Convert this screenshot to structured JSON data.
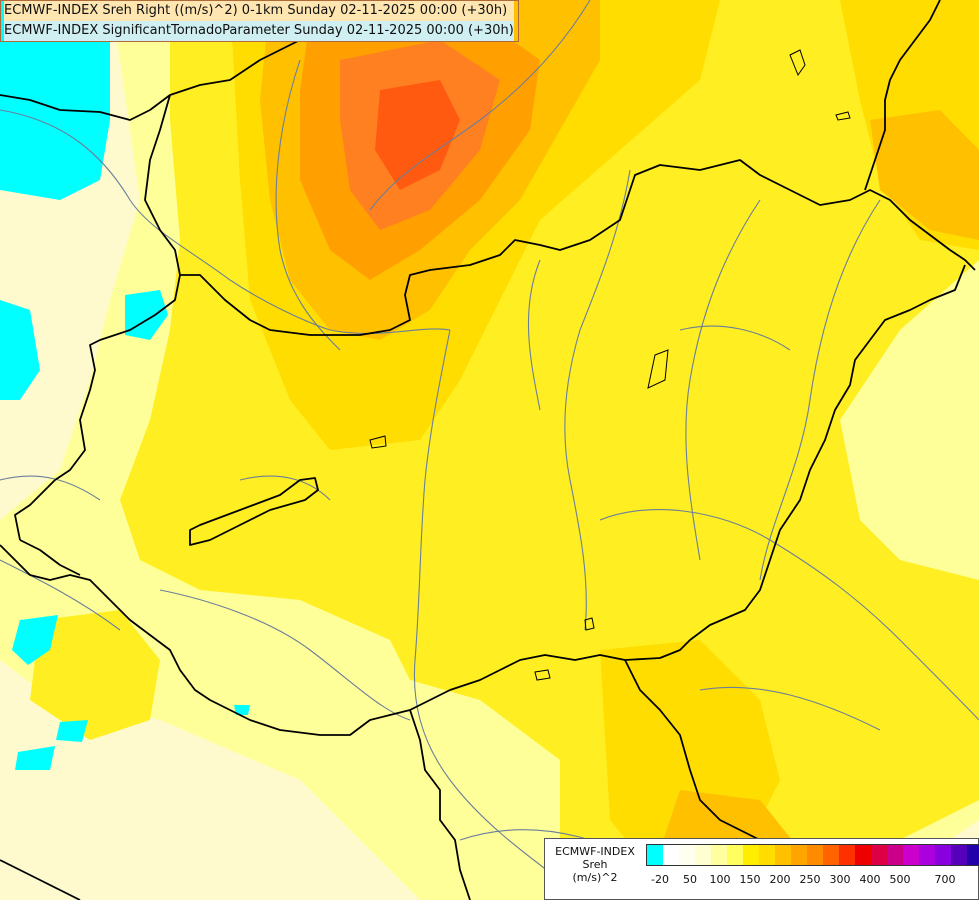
{
  "header": {
    "line1": "ECMWF-INDEX Sreh Right ((m/s)^2) 0-1km Sunday 02-11-2025 00:00 (+30h)",
    "line2": "ECMWF-INDEX SignificantTornadoParameter Sunday 02-11-2025 00:00 (+30h)"
  },
  "legend": {
    "title_line1": "ECMWF-INDEX",
    "title_line2": "Sreh",
    "title_line3": "(m/s)^2",
    "colors": [
      "#00ffff",
      "#ffffff",
      "#fffff0",
      "#ffffd0",
      "#ffffa0",
      "#ffff60",
      "#ffee00",
      "#ffdd00",
      "#ffc000",
      "#ffa500",
      "#ff8c00",
      "#ff6400",
      "#ff3000",
      "#ee0000",
      "#dd0044",
      "#cc0088",
      "#cc00cc",
      "#aa00dd",
      "#8800dd",
      "#5500bb",
      "#2200aa",
      "#000080"
    ],
    "ticks": [
      "-20",
      "50",
      "100",
      "150",
      "200",
      "250",
      "300",
      "400",
      "500",
      "700"
    ]
  },
  "map_colors": {
    "pale": "#fffacd",
    "light_yellow": "#ffff99",
    "yellow": "#ffee22",
    "gold": "#ffdd00",
    "amber": "#ffc000",
    "orange": "#ffa000",
    "dark_orange": "#ff8020",
    "red_orange": "#ff5a10",
    "cyan": "#00ffff",
    "border": "#000000",
    "river": "#6a7f9a"
  }
}
